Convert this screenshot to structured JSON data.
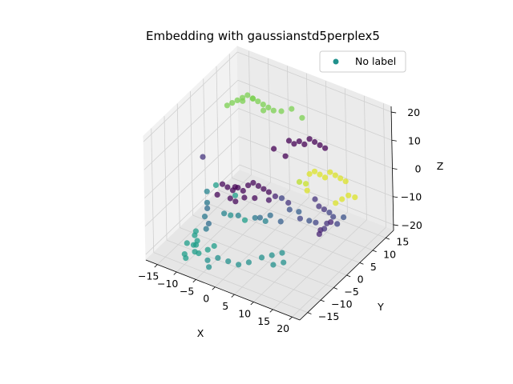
{
  "chart_data": {
    "type": "scatter",
    "projection": "3d",
    "title": "Embedding with gaussianstd5perplex5",
    "xlabel": "X",
    "ylabel": "Y",
    "zlabel": "Z",
    "xlim": [
      -18,
      22
    ],
    "ylim": [
      -18,
      18
    ],
    "zlim": [
      -22,
      22
    ],
    "xticks": [
      "−15",
      "−10",
      "−5",
      "0",
      "5",
      "10",
      "15",
      "20"
    ],
    "xtick_values": [
      -15,
      -10,
      -5,
      0,
      5,
      10,
      15,
      20
    ],
    "yticks": [
      "−15",
      "−10",
      "−5",
      "0",
      "5",
      "10",
      "15"
    ],
    "ytick_values": [
      -15,
      -10,
      -5,
      0,
      5,
      10,
      15
    ],
    "zticks": [
      "−20",
      "−10",
      "0",
      "10",
      "20"
    ],
    "ztick_values": [
      -20,
      -10,
      0,
      10,
      20
    ],
    "grid": true,
    "legend": {
      "position": "top-right",
      "entries": [
        "No label"
      ],
      "color": "#21918c"
    },
    "series": [
      {
        "name": "No label",
        "colormap": "viridis",
        "points": [
          {
            "x": -14,
            "y": 8,
            "z": 12,
            "c": 0.8
          },
          {
            "x": -13,
            "y": 8.5,
            "z": 13,
            "c": 0.8
          },
          {
            "x": -12,
            "y": 9,
            "z": 14,
            "c": 0.8
          },
          {
            "x": -11,
            "y": 9.5,
            "z": 15,
            "c": 0.8
          },
          {
            "x": -10,
            "y": 10,
            "z": 16,
            "c": 0.8
          },
          {
            "x": -9,
            "y": 10.5,
            "z": 15,
            "c": 0.8
          },
          {
            "x": -8,
            "y": 11,
            "z": 14,
            "c": 0.8
          },
          {
            "x": -7,
            "y": 11.5,
            "z": 13,
            "c": 0.8
          },
          {
            "x": -12,
            "y": 11,
            "z": 12,
            "c": 0.8
          },
          {
            "x": -10,
            "y": 12,
            "z": 13,
            "c": 0.8
          },
          {
            "x": -6,
            "y": 12,
            "z": 12,
            "c": 0.8
          },
          {
            "x": -5,
            "y": 12.5,
            "z": 11,
            "c": 0.8
          },
          {
            "x": -8,
            "y": 13,
            "z": 9,
            "c": 0.8
          },
          {
            "x": -4,
            "y": 14,
            "z": 10,
            "c": 0.8
          },
          {
            "x": -2,
            "y": 15,
            "z": 11,
            "c": 0.8
          },
          {
            "x": 0,
            "y": 16,
            "z": 8,
            "c": 0.8
          },
          {
            "x": 2,
            "y": 8,
            "z": 8,
            "c": 0.0
          },
          {
            "x": 3,
            "y": 8.5,
            "z": 7,
            "c": 0.0
          },
          {
            "x": 4,
            "y": 9,
            "z": 8,
            "c": 0.0
          },
          {
            "x": 5,
            "y": 9.5,
            "z": 7,
            "c": 0.0
          },
          {
            "x": 6,
            "y": 10,
            "z": 9,
            "c": 0.0
          },
          {
            "x": 7,
            "y": 10.5,
            "z": 8,
            "c": 0.0
          },
          {
            "x": 8,
            "y": 11,
            "z": 7,
            "c": 0.0
          },
          {
            "x": 9,
            "y": 11.5,
            "z": 6,
            "c": 0.0
          },
          {
            "x": -2,
            "y": 8,
            "z": 3,
            "c": 0.0
          },
          {
            "x": 1,
            "y": 8,
            "z": 2,
            "c": 0.0
          },
          {
            "x": -13,
            "y": -3,
            "z": 4,
            "c": 0.15
          },
          {
            "x": -4,
            "y": -4,
            "z": -1,
            "c": 0.0
          },
          {
            "x": -8,
            "y": -3,
            "z": -3,
            "c": 0.02
          },
          {
            "x": -7,
            "y": -2.5,
            "z": -4,
            "c": 0.02
          },
          {
            "x": -6,
            "y": -2,
            "z": -5,
            "c": 0.02
          },
          {
            "x": -5,
            "y": -1.5,
            "z": -4,
            "c": 0.02
          },
          {
            "x": -4,
            "y": -1,
            "z": -5,
            "c": 0.02
          },
          {
            "x": -3,
            "y": -0.5,
            "z": -3,
            "c": 0.02
          },
          {
            "x": -2,
            "y": 0,
            "z": -2,
            "c": 0.02
          },
          {
            "x": -1,
            "y": 0.5,
            "z": -3,
            "c": 0.02
          },
          {
            "x": 0,
            "y": 1,
            "z": -4,
            "c": 0.02
          },
          {
            "x": 1,
            "y": 1.5,
            "z": -5,
            "c": 0.02
          },
          {
            "x": -6,
            "y": -3,
            "z": -7,
            "c": 0.02
          },
          {
            "x": -5,
            "y": -2.5,
            "z": -8,
            "c": 0.02
          },
          {
            "x": -3,
            "y": -2,
            "z": -6,
            "c": 0.02
          },
          {
            "x": -1,
            "y": -1,
            "z": -6,
            "c": 0.02
          },
          {
            "x": 2,
            "y": 0,
            "z": -6,
            "c": 0.05
          },
          {
            "x": 3,
            "y": 1,
            "z": -5,
            "c": 0.1
          },
          {
            "x": -8,
            "y": -5,
            "z": -5,
            "c": 0.02
          },
          {
            "x": -9,
            "y": -4,
            "z": -3,
            "c": 0.55
          },
          {
            "x": -10,
            "y": -6,
            "z": -4,
            "c": 0.45
          },
          {
            "x": -4,
            "y": -4,
            "z": -4,
            "c": 0.55
          },
          {
            "x": 4,
            "y": 2,
            "z": -6,
            "c": 0.2
          },
          {
            "x": 5,
            "y": 3,
            "z": -8,
            "c": 0.15
          },
          {
            "x": 6,
            "y": 2,
            "z": -9,
            "c": 0.25
          },
          {
            "x": 7,
            "y": 4,
            "z": -11,
            "c": 0.3
          },
          {
            "x": 8,
            "y": 3,
            "z": -12,
            "c": 0.2
          },
          {
            "x": 3,
            "y": -1,
            "z": -10,
            "c": 0.35
          },
          {
            "x": 5,
            "y": 0,
            "z": -12,
            "c": 0.3
          },
          {
            "x": 9,
            "y": 5,
            "z": -14,
            "c": 0.25
          },
          {
            "x": 10,
            "y": 6,
            "z": -15,
            "c": 0.2
          },
          {
            "x": 1,
            "y": -2,
            "z": -11,
            "c": 0.35
          },
          {
            "x": -10,
            "y": -6,
            "z": -8,
            "c": 0.4
          },
          {
            "x": -10,
            "y": -6,
            "z": -10,
            "c": 0.35
          },
          {
            "x": -10,
            "y": -7,
            "z": -12,
            "c": 0.4
          },
          {
            "x": -9,
            "y": -7,
            "z": -14,
            "c": 0.35
          },
          {
            "x": -9,
            "y": -8,
            "z": -15,
            "c": 0.4
          },
          {
            "x": -7,
            "y": -4,
            "z": -12,
            "c": 0.45
          },
          {
            "x": -6,
            "y": -3,
            "z": -13,
            "c": 0.5
          },
          {
            "x": -4,
            "y": -3,
            "z": -12,
            "c": 0.45
          },
          {
            "x": -3,
            "y": -2,
            "z": -14,
            "c": 0.55
          },
          {
            "x": -1,
            "y": -1,
            "z": -13,
            "c": 0.4
          },
          {
            "x": 1,
            "y": 0,
            "z": -14,
            "c": 0.45
          },
          {
            "x": -11,
            "y": -9,
            "z": -16,
            "c": 0.55
          },
          {
            "x": -11,
            "y": -9.5,
            "z": -17,
            "c": 0.55
          },
          {
            "x": -10,
            "y": -10,
            "z": -18,
            "c": 0.55
          },
          {
            "x": -10,
            "y": -10.5,
            "z": -19,
            "c": 0.55
          },
          {
            "x": -11,
            "y": -10,
            "z": -20,
            "c": 0.55
          },
          {
            "x": -10,
            "y": -11,
            "z": -21,
            "c": 0.55
          },
          {
            "x": -9,
            "y": -11,
            "z": -21,
            "c": 0.55
          },
          {
            "x": -12,
            "y": -11,
            "z": -19,
            "c": 0.55
          },
          {
            "x": -12,
            "y": -12,
            "z": -22,
            "c": 0.55
          },
          {
            "x": -11,
            "y": -13,
            "z": -22,
            "c": 0.55
          },
          {
            "x": -8,
            "y": -9,
            "z": -21,
            "c": 0.55
          },
          {
            "x": -7,
            "y": -8,
            "z": -20,
            "c": 0.55
          },
          {
            "x": -6,
            "y": -12,
            "z": -21,
            "c": 0.5
          },
          {
            "x": -4,
            "y": -11,
            "z": -20,
            "c": 0.5
          },
          {
            "x": -2,
            "y": -10,
            "z": -21,
            "c": 0.5
          },
          {
            "x": 0,
            "y": -9,
            "z": -22,
            "c": 0.5
          },
          {
            "x": 2,
            "y": -8,
            "z": -21,
            "c": 0.5
          },
          {
            "x": 4,
            "y": -6,
            "z": -20,
            "c": 0.5
          },
          {
            "x": 6,
            "y": -5,
            "z": -19,
            "c": 0.5
          },
          {
            "x": 8,
            "y": -4,
            "z": -18,
            "c": 0.5
          },
          {
            "x": 7,
            "y": -6,
            "z": -21,
            "c": 0.5
          },
          {
            "x": 9,
            "y": -5,
            "z": -20,
            "c": 0.5
          },
          {
            "x": -5,
            "y": -13,
            "z": -22,
            "c": 0.5
          },
          {
            "x": 10,
            "y": 4,
            "z": 4,
            "c": 0.95
          },
          {
            "x": 11,
            "y": 4.5,
            "z": 5,
            "c": 0.95
          },
          {
            "x": 12,
            "y": 5,
            "z": 4,
            "c": 0.95
          },
          {
            "x": 13,
            "y": 5.5,
            "z": 3,
            "c": 0.95
          },
          {
            "x": 14,
            "y": 6,
            "z": 5,
            "c": 0.95
          },
          {
            "x": 15,
            "y": 6.5,
            "z": 4,
            "c": 0.95
          },
          {
            "x": 16,
            "y": 7,
            "z": 3,
            "c": 0.95
          },
          {
            "x": 17,
            "y": 7.5,
            "z": 2,
            "c": 0.95
          },
          {
            "x": 8,
            "y": 3,
            "z": 1,
            "c": 0.9
          },
          {
            "x": 9,
            "y": 4,
            "z": 0,
            "c": 0.92
          },
          {
            "x": 10,
            "y": 3,
            "z": -1,
            "c": 0.95
          },
          {
            "x": 17,
            "y": 6,
            "z": -3,
            "c": 0.95
          },
          {
            "x": 18,
            "y": 7,
            "z": -2,
            "c": 0.95
          },
          {
            "x": 19,
            "y": 8,
            "z": -3,
            "c": 0.95
          },
          {
            "x": 16,
            "y": 5,
            "z": -4,
            "c": 0.95
          },
          {
            "x": 12,
            "y": 3,
            "z": -3,
            "c": 0.15
          },
          {
            "x": 13,
            "y": 3,
            "z": -5,
            "c": 0.15
          },
          {
            "x": 14,
            "y": 3.5,
            "z": -6,
            "c": 0.15
          },
          {
            "x": 15,
            "y": 4,
            "z": -7,
            "c": 0.2
          },
          {
            "x": 16,
            "y": 4,
            "z": -8,
            "c": 0.2
          },
          {
            "x": 15,
            "y": 3,
            "z": -10,
            "c": 0.15
          },
          {
            "x": 14,
            "y": 2,
            "z": -12,
            "c": 0.1
          },
          {
            "x": 14,
            "y": 1.5,
            "z": -13,
            "c": 0.1
          },
          {
            "x": 15,
            "y": 2,
            "z": -11,
            "c": 0.15
          },
          {
            "x": 16,
            "y": 3,
            "z": -9,
            "c": 0.1
          },
          {
            "x": 18,
            "y": 5,
            "z": -8,
            "c": 0.25
          },
          {
            "x": 17,
            "y": 4,
            "z": -10,
            "c": 0.2
          }
        ]
      }
    ]
  }
}
